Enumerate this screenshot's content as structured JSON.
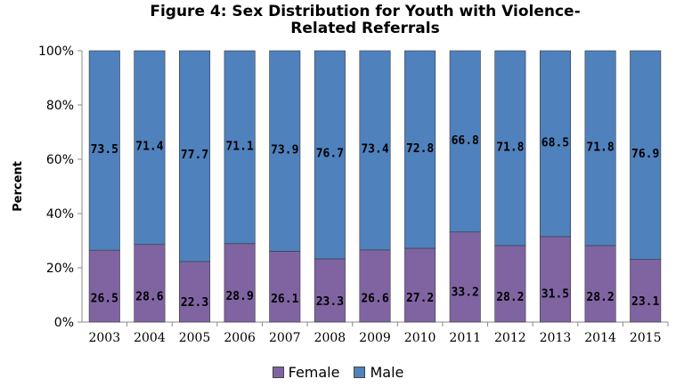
{
  "chart_data": {
    "type": "bar",
    "stacked": true,
    "percent_stacked": true,
    "title": [
      "Figure 4: Sex Distribution for Youth with Violence-",
      "Related Referrals"
    ],
    "xlabel": "",
    "ylabel": "Percent",
    "ylim": [
      0,
      100
    ],
    "yticks": [
      "0%",
      "20%",
      "40%",
      "60%",
      "80%",
      "100%"
    ],
    "categories": [
      "2003",
      "2004",
      "2005",
      "2006",
      "2007",
      "2008",
      "2009",
      "2010",
      "2011",
      "2012",
      "2013",
      "2014",
      "2015"
    ],
    "series": [
      {
        "name": "Female",
        "color": "#8064a2",
        "values": [
          26.5,
          28.6,
          22.3,
          28.9,
          26.1,
          23.3,
          26.6,
          27.2,
          33.2,
          28.2,
          31.5,
          28.2,
          23.1
        ]
      },
      {
        "name": "Male",
        "color": "#4f81bd",
        "values": [
          73.5,
          71.4,
          77.7,
          71.1,
          73.9,
          76.7,
          73.4,
          72.8,
          66.8,
          71.8,
          68.5,
          71.8,
          76.9
        ]
      }
    ],
    "legend_position": "bottom",
    "grid": false
  }
}
